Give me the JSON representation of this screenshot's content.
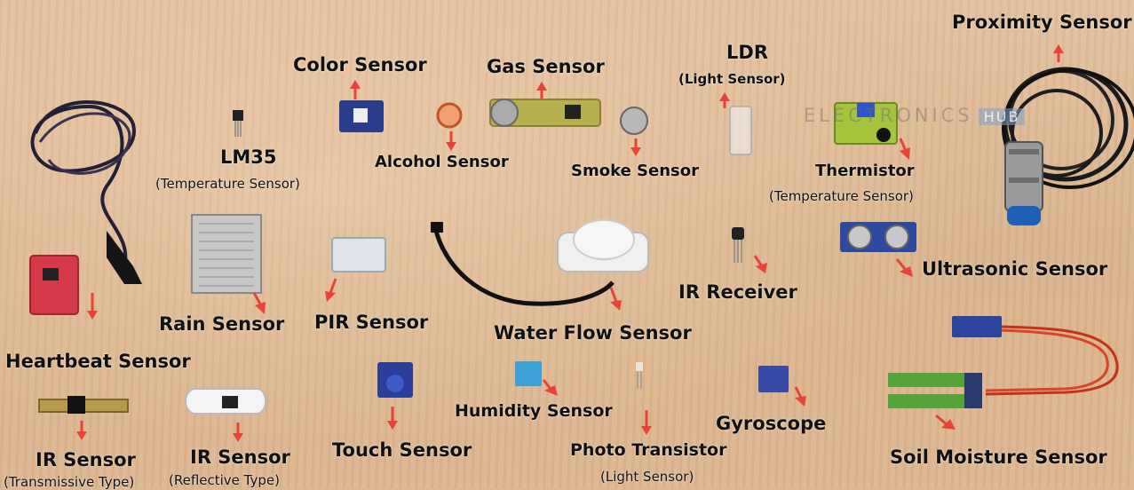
{
  "title": "Proximity Sensor",
  "sensors": {
    "proximity": "Proximity Sensor",
    "color": "Color Sensor",
    "gas": "Gas Sensor",
    "ldr": "LDR",
    "ldr_sub": "(Light Sensor)",
    "lm35": "LM35",
    "lm35_sub": "(Temperature Sensor)",
    "alcohol": "Alcohol Sensor",
    "smoke": "Smoke Sensor",
    "thermistor": "Thermistor",
    "thermistor_sub": "(Temperature Sensor)",
    "rain": "Rain Sensor",
    "pir": "PIR Sensor",
    "water_flow": "Water Flow Sensor",
    "ir_receiver": "IR Receiver",
    "ultrasonic": "Ultrasonic Sensor",
    "heartbeat": "Heartbeat Sensor",
    "ir_transmissive": "IR Sensor",
    "ir_transmissive_sub": "(Transmissive Type)",
    "ir_reflective": "IR Sensor",
    "ir_reflective_sub": "(Reflective Type)",
    "touch": "Touch Sensor",
    "humidity": "Humidity Sensor",
    "photo_transistor": "Photo Transistor",
    "photo_transistor_sub": "(Light Sensor)",
    "gyroscope": "Gyroscope",
    "soil_moisture": "Soil Moisture Sensor"
  },
  "watermark": {
    "text": "ELECTRONICS",
    "tag": "HUB"
  },
  "colors": {
    "arrow": "#e8433a",
    "board": "#ddb792",
    "label": "#111111"
  }
}
